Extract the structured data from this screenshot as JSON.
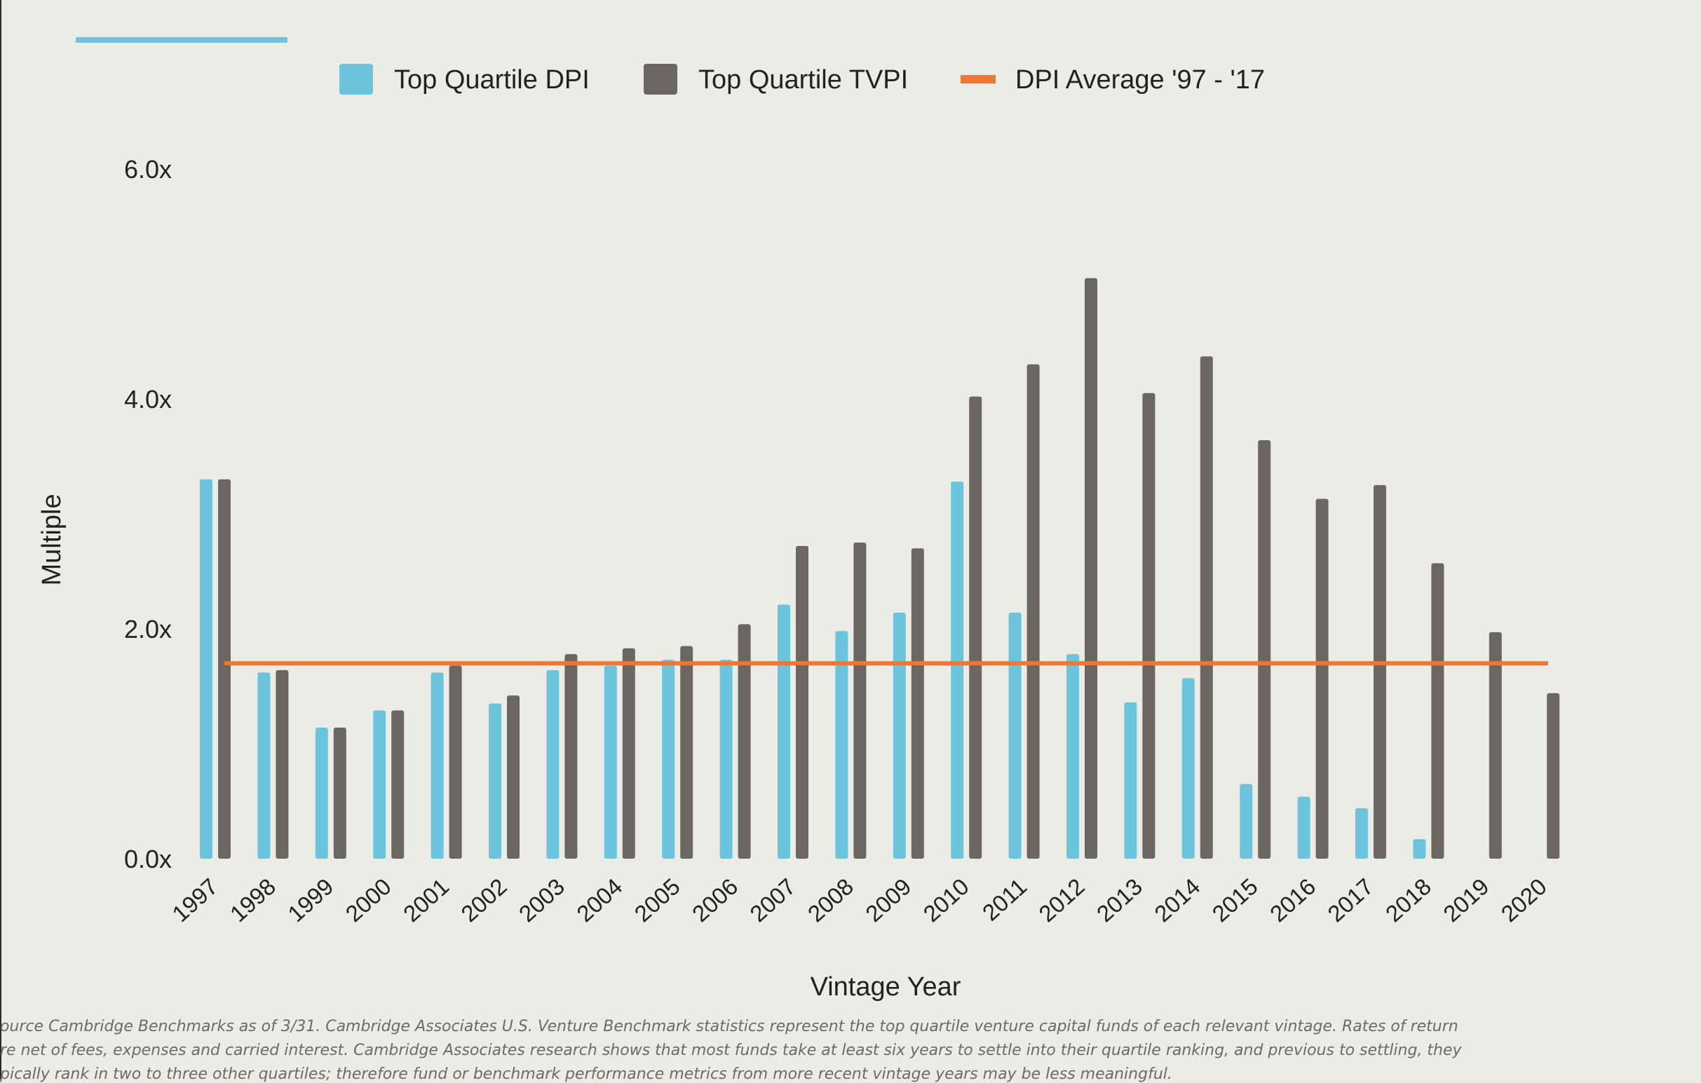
{
  "accent_color": "#6cc4dc",
  "chart_data": {
    "type": "bar",
    "title": "",
    "xlabel": "Vintage Year",
    "ylabel": "Multiple",
    "ylim": [
      0,
      6
    ],
    "yticks": [
      0,
      2,
      4,
      6
    ],
    "ytick_labels": [
      "0.0x",
      "2.0x",
      "4.0x",
      "6.0x"
    ],
    "legend_position": "top",
    "grid": false,
    "categories": [
      "1997",
      "1998",
      "1999",
      "2000",
      "2001",
      "2002",
      "2003",
      "2004",
      "2005",
      "2006",
      "2007",
      "2008",
      "2009",
      "2010",
      "2011",
      "2012",
      "2013",
      "2014",
      "2015",
      "2016",
      "2017",
      "2018",
      "2019",
      "2020"
    ],
    "series": [
      {
        "name": "Top Quartile DPI",
        "color": "#6cc4dc",
        "values": [
          3.3,
          1.62,
          1.14,
          1.29,
          1.62,
          1.35,
          1.64,
          1.68,
          1.73,
          1.73,
          2.21,
          1.98,
          2.14,
          3.28,
          2.14,
          1.78,
          1.36,
          1.57,
          0.65,
          0.54,
          0.44,
          0.17,
          null,
          null
        ]
      },
      {
        "name": "Top Quartile TVPI",
        "color": "#6b6660",
        "values": [
          3.3,
          1.64,
          1.14,
          1.29,
          1.68,
          1.42,
          1.78,
          1.83,
          1.85,
          2.04,
          2.72,
          2.75,
          2.7,
          4.02,
          4.3,
          5.05,
          4.05,
          4.37,
          3.64,
          3.13,
          3.25,
          2.57,
          1.97,
          1.44
        ]
      }
    ],
    "reference_lines": [
      {
        "name": "DPI Average '97 - '17",
        "color": "#ee7736",
        "value": 1.7
      }
    ]
  },
  "footnote": {
    "lines": [
      "ource Cambridge Benchmarks as of 3/31.  Cambridge Associates U.S. Venture Benchmark statistics represent the top quartile venture capital funds of each relevant vintage. Rates of return",
      "re net of fees, expenses and carried interest. Cambridge Associates research shows that  most funds take at  least six years to settle into their quartile ranking, and previous to settling, they",
      "pically rank in two to three other quartiles; therefore fund or benchmark performance metrics from more recent vintage years may be less meaningful."
    ]
  }
}
